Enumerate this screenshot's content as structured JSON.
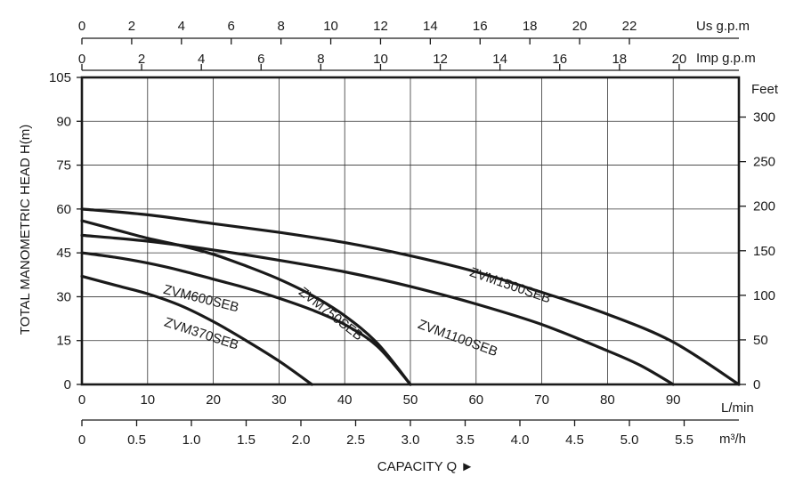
{
  "chart_data": {
    "type": "line",
    "grid": true,
    "y_left": {
      "label": "TOTAL MANOMETRIC HEAD H(m)",
      "range": [
        0,
        105
      ],
      "ticks": [
        "0",
        "15",
        "30",
        "45",
        "60",
        "75",
        "90",
        "105"
      ]
    },
    "y_right": {
      "unit": "Feet",
      "range": [
        0,
        344.5
      ],
      "ticks": [
        "0",
        "50",
        "100",
        "150",
        "200",
        "250",
        "300"
      ]
    },
    "x_bottom": {
      "unit": "L/min",
      "range": [
        0,
        100
      ],
      "ticks": [
        "0",
        "10",
        "20",
        "30",
        "40",
        "50",
        "60",
        "70",
        "80",
        "90"
      ]
    },
    "x_m3h": {
      "unit": "m³/h",
      "range": [
        0,
        6
      ],
      "ticks": [
        "0",
        "0.5",
        "1.0",
        "1.5",
        "2.0",
        "2.5",
        "3.0",
        "3.5",
        "4.0",
        "4.5",
        "5.0",
        "5.5"
      ]
    },
    "x_imp": {
      "unit": "Imp g.p.m",
      "range": [
        0,
        22
      ],
      "ticks": [
        "0",
        "2",
        "4",
        "6",
        "8",
        "10",
        "12",
        "14",
        "16",
        "18",
        "20"
      ]
    },
    "x_us": {
      "unit": "Us g.p.m",
      "range": [
        0,
        26.4
      ],
      "ticks": [
        "0",
        "2",
        "4",
        "6",
        "8",
        "10",
        "12",
        "14",
        "16",
        "18",
        "20",
        "22"
      ]
    },
    "xlabel": "CAPACITY Q ►",
    "series": [
      {
        "name": "ZVM370SEB",
        "x": [
          0,
          5,
          10,
          15,
          20,
          25,
          30,
          35
        ],
        "y": [
          37,
          34,
          31,
          27,
          21.5,
          15,
          8,
          0
        ]
      },
      {
        "name": "ZVM600SEB",
        "x": [
          0,
          5,
          10,
          15,
          20,
          25,
          30,
          35,
          40,
          45,
          50
        ],
        "y": [
          45,
          43.5,
          41.5,
          39,
          36,
          33,
          29.5,
          25.5,
          20.5,
          13,
          0
        ]
      },
      {
        "name": "ZVM750SEB",
        "x": [
          0,
          5,
          10,
          15,
          20,
          25,
          30,
          35,
          40,
          45,
          50
        ],
        "y": [
          56,
          53,
          50,
          47.5,
          44.5,
          40.5,
          36,
          30.5,
          23.5,
          14,
          0
        ]
      },
      {
        "name": "ZVM1100SEB",
        "x": [
          0,
          10,
          20,
          30,
          40,
          50,
          60,
          70,
          80,
          85,
          90
        ],
        "y": [
          51,
          49,
          46,
          42.5,
          38.5,
          33.5,
          27.5,
          20.5,
          11.5,
          6.5,
          0
        ]
      },
      {
        "name": "ZVM1500SEB",
        "x": [
          0,
          10,
          20,
          30,
          40,
          50,
          60,
          70,
          80,
          90,
          100
        ],
        "y": [
          60,
          58,
          55,
          52,
          48.5,
          44,
          38.5,
          31.5,
          24,
          14.5,
          0
        ]
      }
    ]
  }
}
